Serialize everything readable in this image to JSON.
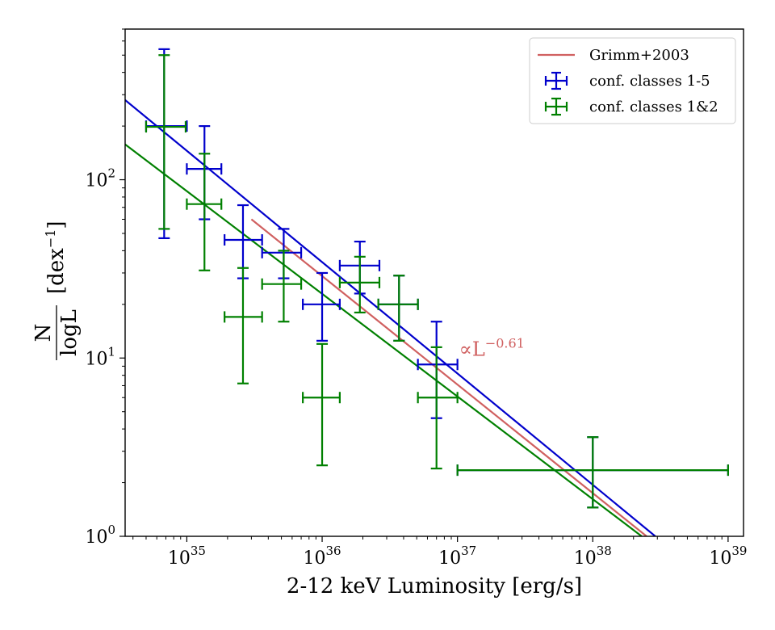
{
  "chart_data": {
    "type": "scatter",
    "title": "",
    "xlabel": "2-12 keV Luminosity [erg/s]",
    "ylabel": {
      "numerator": "N",
      "denominator": "logL",
      "unit_prefix": "[dex",
      "unit_exp": "−1",
      "unit_suffix": "]"
    },
    "xscale": "log",
    "yscale": "log",
    "xlim": [
      3.5e+34,
      1.3e+39
    ],
    "ylim": [
      1,
      700
    ],
    "xticks": [
      {
        "value": 1e+35,
        "base": "10",
        "exp": "35"
      },
      {
        "value": 1e+36,
        "base": "10",
        "exp": "36"
      },
      {
        "value": 1e+37,
        "base": "10",
        "exp": "37"
      },
      {
        "value": 1e+38,
        "base": "10",
        "exp": "38"
      },
      {
        "value": 1e+39,
        "base": "10",
        "exp": "39"
      }
    ],
    "yticks": [
      {
        "value": 1,
        "base": "10",
        "exp": "0"
      },
      {
        "value": 10,
        "base": "10",
        "exp": "1"
      },
      {
        "value": 100,
        "base": "10",
        "exp": "2"
      }
    ],
    "legend": {
      "position": "top-right",
      "entries": [
        {
          "label": "Grimm+2003",
          "kind": "line",
          "color": "#d06060"
        },
        {
          "label": "conf. classes 1-5",
          "kind": "errorbar",
          "color": "#0000cc"
        },
        {
          "label": "conf. classes 1&2",
          "kind": "errorbar",
          "color": "#008000"
        }
      ]
    },
    "annotation": {
      "text_base": "∝L",
      "text_exp": "−0.61",
      "x": 1e+37,
      "y": 10.5,
      "color": "#d06060"
    },
    "lines": [
      {
        "name": "Grimm+2003",
        "color": "#d06060",
        "x": [
          3e+35,
          2.5e+38
        ],
        "y": [
          60,
          1.0
        ]
      },
      {
        "name": "fit conf. classes 1-5",
        "color": "#0000cc",
        "x": [
          3.5e+34,
          2.9e+38
        ],
        "y": [
          280,
          1.0
        ]
      },
      {
        "name": "fit conf. classes 1&2",
        "color": "#008000",
        "x": [
          3.5e+34,
          2.3e+38
        ],
        "y": [
          158,
          1.0
        ]
      }
    ],
    "series": [
      {
        "name": "conf. classes 1-5",
        "color": "#0000cc",
        "points": [
          {
            "x": 6.8e+34,
            "y": 200,
            "xlo": 5e+34,
            "xhi": 1e+35,
            "ylo": 47,
            "yhi": 540
          },
          {
            "x": 1.35e+35,
            "y": 115,
            "xlo": 1e+35,
            "xhi": 1.8e+35,
            "ylo": 60,
            "yhi": 200
          },
          {
            "x": 2.6e+35,
            "y": 46,
            "xlo": 1.9e+35,
            "xhi": 3.6e+35,
            "ylo": 28,
            "yhi": 72
          },
          {
            "x": 5.2e+35,
            "y": 39,
            "xlo": 3.6e+35,
            "xhi": 7e+35,
            "ylo": 28,
            "yhi": 53
          },
          {
            "x": 1e+36,
            "y": 20,
            "xlo": 7.2e+35,
            "xhi": 1.35e+36,
            "ylo": 12.5,
            "yhi": 30
          },
          {
            "x": 1.9e+36,
            "y": 33,
            "xlo": 1.35e+36,
            "xhi": 2.65e+36,
            "ylo": 23,
            "yhi": 45
          },
          {
            "x": 3.7e+36,
            "y": 20,
            "xlo": 2.6e+36,
            "xhi": 5.1e+36,
            "ylo": 12.5,
            "yhi": 29
          },
          {
            "x": 7e+36,
            "y": 9.2,
            "xlo": 5.1e+36,
            "xhi": 1e+37,
            "ylo": 4.6,
            "yhi": 16
          },
          {
            "x": 1e+38,
            "y": 2.35,
            "xlo": 1e+37,
            "xhi": 1e+39,
            "ylo": 1.45,
            "yhi": 3.6
          }
        ]
      },
      {
        "name": "conf. classes 1&2",
        "color": "#008000",
        "points": [
          {
            "x": 6.8e+34,
            "y": 198,
            "xlo": 5e+34,
            "xhi": 9.8e+34,
            "ylo": 53,
            "yhi": 500
          },
          {
            "x": 1.35e+35,
            "y": 73,
            "xlo": 1e+35,
            "xhi": 1.8e+35,
            "ylo": 31,
            "yhi": 140
          },
          {
            "x": 2.6e+35,
            "y": 17,
            "xlo": 1.9e+35,
            "xhi": 3.6e+35,
            "ylo": 7.2,
            "yhi": 32
          },
          {
            "x": 5.2e+35,
            "y": 26,
            "xlo": 3.6e+35,
            "xhi": 7e+35,
            "ylo": 16,
            "yhi": 40
          },
          {
            "x": 1e+36,
            "y": 6.0,
            "xlo": 7.2e+35,
            "xhi": 1.35e+36,
            "ylo": 2.5,
            "yhi": 12
          },
          {
            "x": 1.9e+36,
            "y": 26.5,
            "xlo": 1.35e+36,
            "xhi": 2.65e+36,
            "ylo": 18,
            "yhi": 37
          },
          {
            "x": 3.7e+36,
            "y": 20,
            "xlo": 2.6e+36,
            "xhi": 5.1e+36,
            "ylo": 12.5,
            "yhi": 29
          },
          {
            "x": 7e+36,
            "y": 6.0,
            "xlo": 5.1e+36,
            "xhi": 1e+37,
            "ylo": 2.4,
            "yhi": 11.5
          },
          {
            "x": 1e+38,
            "y": 2.35,
            "xlo": 1e+37,
            "xhi": 1e+39,
            "ylo": 1.45,
            "yhi": 3.6
          }
        ]
      }
    ]
  }
}
